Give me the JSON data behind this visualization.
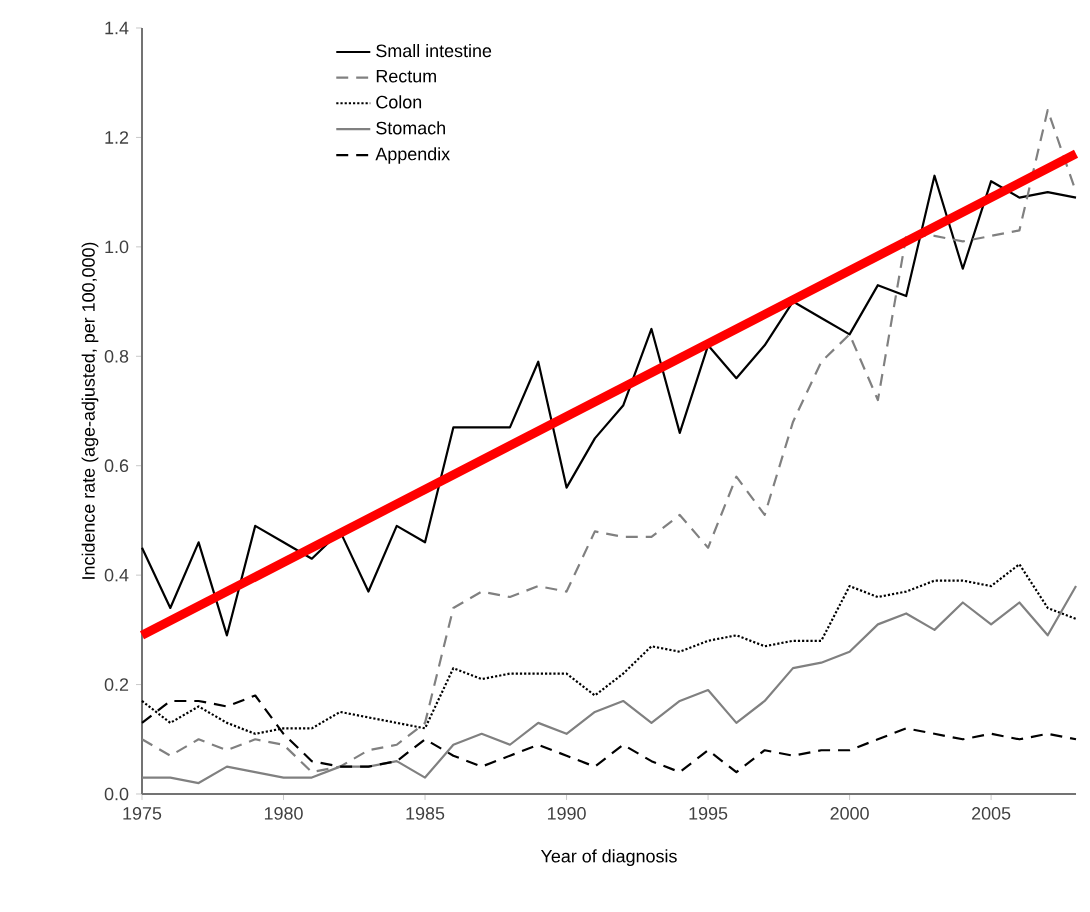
{
  "chart_data": {
    "type": "line",
    "xlabel": "Year of diagnosis",
    "ylabel": "Incidence rate (age-adjusted, per 100,000)",
    "x": [
      1975,
      1976,
      1977,
      1978,
      1979,
      1980,
      1981,
      1982,
      1983,
      1984,
      1985,
      1986,
      1987,
      1988,
      1989,
      1990,
      1991,
      1992,
      1993,
      1994,
      1995,
      1996,
      1997,
      1998,
      1999,
      2000,
      2001,
      2002,
      2003,
      2004,
      2005,
      2006,
      2007,
      2008
    ],
    "series": [
      {
        "name": "Small intestine",
        "color": "#000000",
        "line_style": "solid",
        "values": [
          0.45,
          0.34,
          0.46,
          0.29,
          0.49,
          0.46,
          0.43,
          0.48,
          0.37,
          0.49,
          0.46,
          0.67,
          0.67,
          0.67,
          0.79,
          0.56,
          0.65,
          0.71,
          0.85,
          0.66,
          0.82,
          0.76,
          0.82,
          0.9,
          0.87,
          0.84,
          0.93,
          0.91,
          1.13,
          0.96,
          1.12,
          1.09,
          1.1,
          1.09
        ]
      },
      {
        "name": "Rectum",
        "color": "#808080",
        "line_style": "dashed",
        "values": [
          0.1,
          0.07,
          0.1,
          0.08,
          0.1,
          0.09,
          0.04,
          0.05,
          0.08,
          0.09,
          0.13,
          0.34,
          0.37,
          0.36,
          0.38,
          0.37,
          0.48,
          0.47,
          0.47,
          0.51,
          0.45,
          0.58,
          0.51,
          0.68,
          0.79,
          0.84,
          0.72,
          1.02,
          1.02,
          1.01,
          1.02,
          1.03,
          1.25,
          1.1
        ]
      },
      {
        "name": "Colon",
        "color": "#000000",
        "line_style": "dotted",
        "values": [
          0.17,
          0.13,
          0.16,
          0.13,
          0.11,
          0.12,
          0.12,
          0.15,
          0.14,
          0.13,
          0.12,
          0.23,
          0.21,
          0.22,
          0.22,
          0.22,
          0.18,
          0.22,
          0.27,
          0.26,
          0.28,
          0.29,
          0.27,
          0.28,
          0.28,
          0.38,
          0.36,
          0.37,
          0.39,
          0.39,
          0.38,
          0.42,
          0.34,
          0.32
        ]
      },
      {
        "name": "Stomach",
        "color": "#808080",
        "line_style": "solid",
        "values": [
          0.03,
          0.03,
          0.02,
          0.05,
          0.04,
          0.03,
          0.03,
          0.05,
          0.05,
          0.06,
          0.03,
          0.09,
          0.11,
          0.09,
          0.13,
          0.11,
          0.15,
          0.17,
          0.13,
          0.17,
          0.19,
          0.13,
          0.17,
          0.23,
          0.24,
          0.26,
          0.31,
          0.33,
          0.3,
          0.35,
          0.31,
          0.35,
          0.29,
          0.38
        ]
      },
      {
        "name": "Appendix",
        "color": "#000000",
        "line_style": "dashed",
        "values": [
          0.13,
          0.17,
          0.17,
          0.16,
          0.18,
          0.11,
          0.06,
          0.05,
          0.05,
          0.06,
          0.1,
          0.07,
          0.05,
          0.07,
          0.09,
          0.07,
          0.05,
          0.09,
          0.06,
          0.04,
          0.08,
          0.04,
          0.08,
          0.07,
          0.08,
          0.08,
          0.1,
          0.12,
          0.11,
          0.1,
          0.11,
          0.1,
          0.11,
          0.1
        ]
      },
      {
        "type": "line",
        "color": "#ff0000",
        "x": [
          1975,
          2008
        ],
        "values": [
          0.29,
          1.17
        ]
      }
    ],
    "xlim": [
      1975,
      2008
    ],
    "ylim": [
      0,
      1.4
    ],
    "xticks": [
      1975,
      1980,
      1985,
      1990,
      1995,
      2000,
      2005
    ],
    "yticks": [
      {
        "value": 0,
        "label": "0.0"
      },
      0.2,
      0.4,
      0.6,
      0.8,
      {
        "value": 1,
        "label": "1.0"
      },
      1.2,
      1.4
    ],
    "legend": "top left",
    "grid": false
  }
}
